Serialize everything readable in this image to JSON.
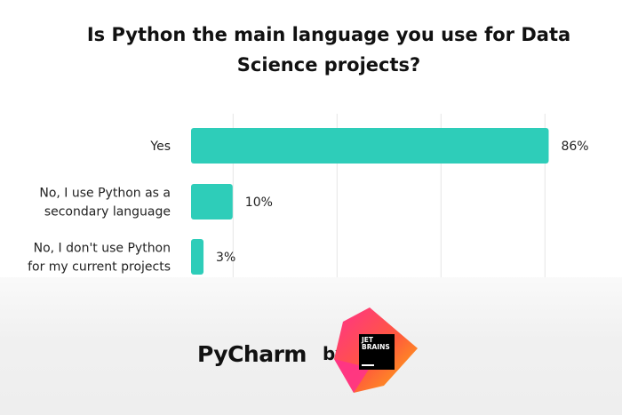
{
  "chart_data": {
    "type": "bar",
    "orientation": "horizontal",
    "title": "Is Python the main language you use for Data Science projects?",
    "title_lines": [
      "Is Python the main language you use for Data",
      "Science projects?"
    ],
    "categories": [
      "Yes",
      "No, I use Python as a secondary language",
      "No, I don't use Python for my current projects"
    ],
    "category_lines": [
      [
        "Yes"
      ],
      [
        "No, I use Python as a",
        "secondary language"
      ],
      [
        "No, I don't use Python",
        "for my current projects"
      ]
    ],
    "values": [
      86,
      10,
      3
    ],
    "data_labels": [
      "86%",
      "10%",
      "3%"
    ],
    "xlim": [
      0,
      100
    ],
    "grid": true,
    "legend": "none"
  },
  "colors": {
    "bar": "#2ecdb9",
    "grid": "#e4e4e4",
    "text": "#222222"
  },
  "branding": {
    "product": "PyCharm",
    "by": "by",
    "company_line1": "JET",
    "company_line2": "BRAINS"
  },
  "icons": {
    "logo": "jetbrains-logo-icon"
  }
}
